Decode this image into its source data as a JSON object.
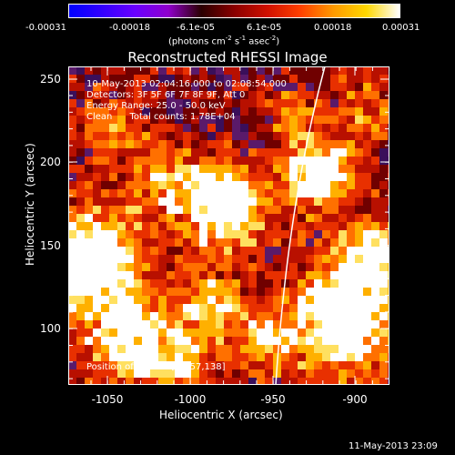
{
  "colorbar": {
    "tick_labels": [
      "-0.00031",
      "-0.00018",
      "-6.1e-05",
      "6.1e-05",
      "0.00018",
      "0.00031"
    ],
    "units_prefix": "(photons cm",
    "units_exp1": "-2",
    "units_mid": " s",
    "units_exp2": "-1",
    "units_mid2": " asec",
    "units_exp3": "-2",
    "units_suffix": ")",
    "colors": [
      "#0000ff",
      "#3300ff",
      "#6a00ff",
      "#9000cc",
      "#2a0000",
      "#8a0000",
      "#d01000",
      "#ff4000",
      "#ff9a00",
      "#ffd800",
      "#ffffff"
    ]
  },
  "title": "Reconstructed RHESSI Image",
  "annotations": [
    "10-May-2013 02:04:16.000 to 02:08:54.000",
    "Detectors: 3F 5F 6F 7F 8F 9F, Att 0",
    "Energy Range: 25.0 - 50.0 keV",
    "Clean      Total counts: 1.78E+04"
  ],
  "peak_label": "Position of Peak = [-1057,138]",
  "x_axis": {
    "label": "Heliocentric X (arcsec)",
    "ticks": [
      "-1050",
      "-1000",
      "-950",
      "-900"
    ],
    "range": [
      -1075,
      -885
    ]
  },
  "y_axis": {
    "label": "Heliocentric Y (arcsec)",
    "ticks": [
      "250",
      "200",
      "150",
      "100"
    ],
    "range": [
      65,
      262
    ]
  },
  "footer_timestamp": "11-May-2013 23:09",
  "image_colors": {
    "background": "#3a0f5a",
    "dark_red": "#7a0000",
    "red": "#c81400",
    "orange": "#ff5a00",
    "yellow": "#ffd000",
    "white": "#ffffff",
    "limb": "#ffffff"
  }
}
